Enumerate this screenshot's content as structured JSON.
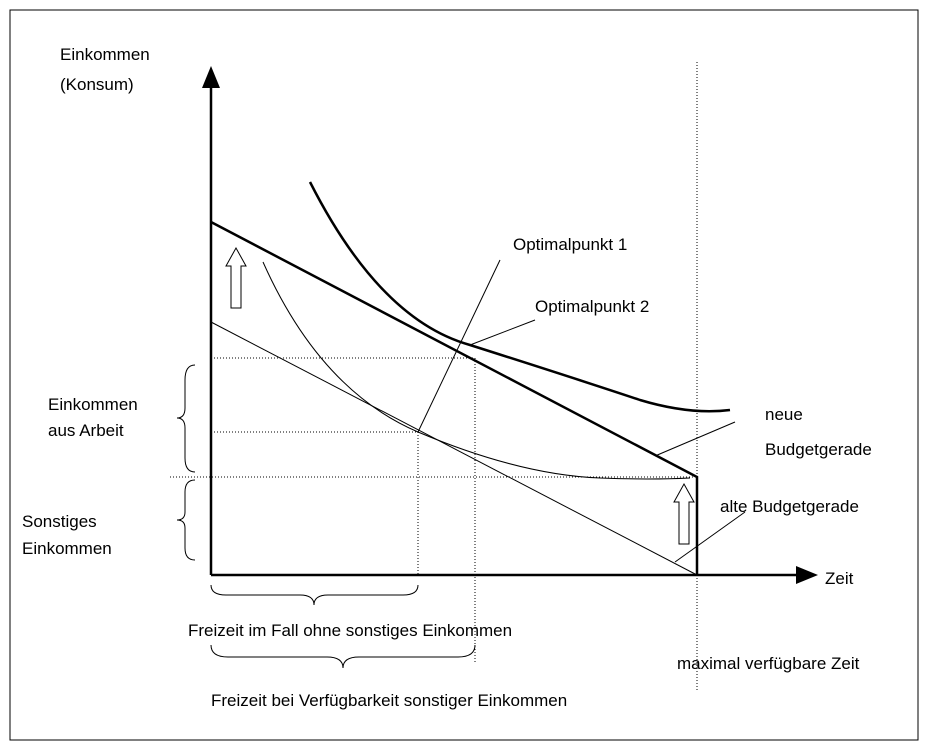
{
  "axes": {
    "y_label": [
      "Einkommen",
      "(Konsum)"
    ],
    "x_label": "Zeit"
  },
  "labels": {
    "optimum_1": "Optimalpunkt 1",
    "optimum_2": "Optimalpunkt 2",
    "labor_income": [
      "Einkommen",
      "aus Arbeit"
    ],
    "other_income": [
      "Sonstiges",
      "Einkommen"
    ],
    "new_budget": [
      "neue",
      "Budgetgerade"
    ],
    "old_budget": "alte Budgetgerade",
    "leisure_without": "Freizeit im Fall ohne sonstiges Einkommen",
    "leisure_with": "Freizeit bei Verfügbarkeit sonstiger Einkommen",
    "max_time": "maximal verfügbare Zeit"
  }
}
